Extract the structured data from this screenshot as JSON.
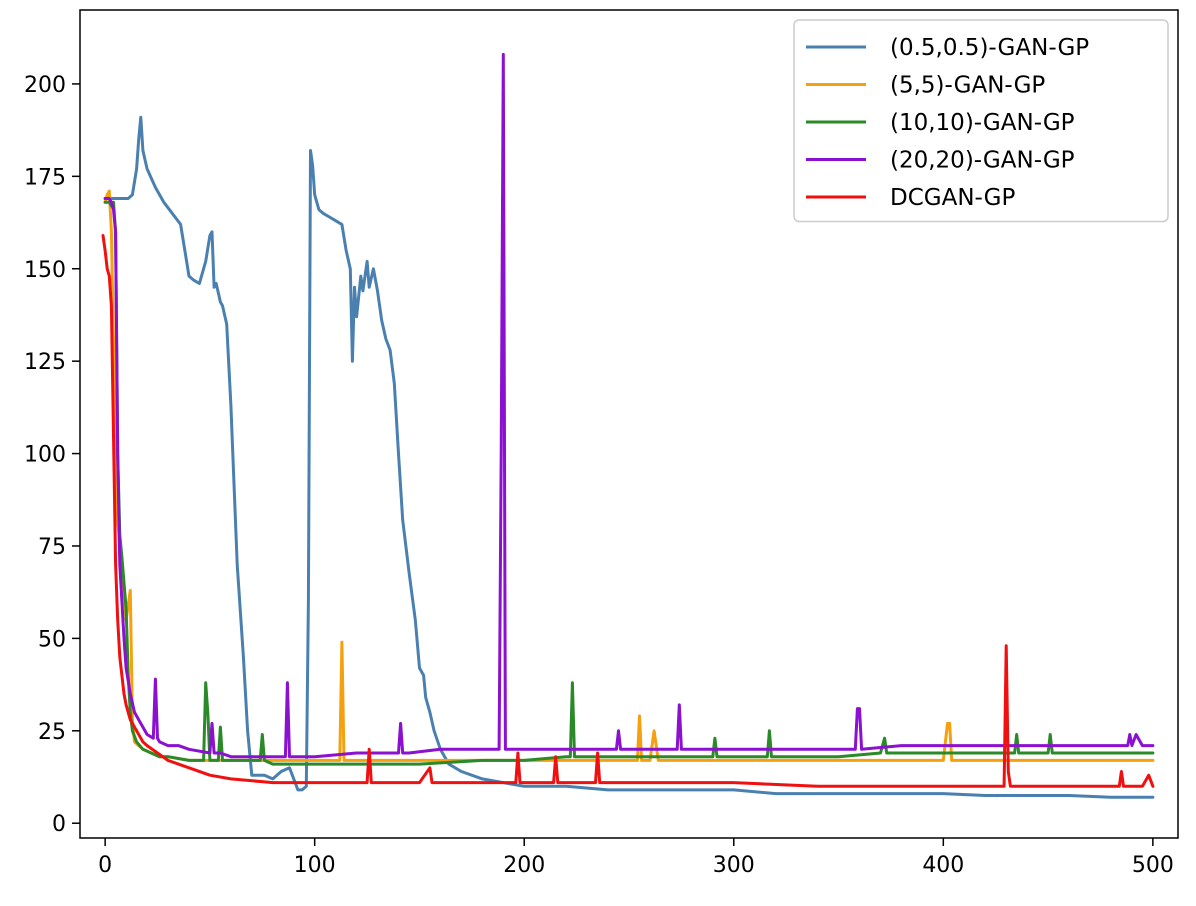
{
  "chart_data": {
    "type": "line",
    "title": "",
    "xlabel": "",
    "ylabel": "",
    "xlim": [
      -12,
      512
    ],
    "ylim": [
      -4,
      220
    ],
    "xticks": [
      0,
      100,
      200,
      300,
      400,
      500
    ],
    "yticks": [
      0,
      25,
      50,
      75,
      100,
      125,
      150,
      175,
      200
    ],
    "grid": false,
    "legend_position": "top-right",
    "series": [
      {
        "name": "(0.5,0.5)-GAN-GP",
        "color": "#4a80b0",
        "x": [
          0,
          2,
          5,
          8,
          11,
          13,
          15,
          16,
          17,
          18,
          20,
          24,
          28,
          32,
          36,
          40,
          42,
          45,
          48,
          50,
          51,
          52,
          53,
          55,
          56,
          58,
          60,
          63,
          66,
          68,
          70,
          73,
          76,
          80,
          84,
          88,
          92,
          94,
          96,
          97,
          98,
          99,
          100,
          102,
          104,
          107,
          110,
          113,
          115,
          117,
          118,
          119,
          120,
          122,
          123,
          125,
          126,
          128,
          130,
          131,
          132,
          134,
          136,
          138,
          140,
          142,
          145,
          148,
          150,
          152,
          153,
          155,
          157,
          160,
          164,
          170,
          180,
          190,
          200,
          220,
          240,
          260,
          280,
          300,
          320,
          340,
          360,
          380,
          400,
          420,
          440,
          460,
          480,
          490,
          500
        ],
        "values": [
          169,
          169,
          169,
          169,
          169,
          170,
          177,
          185,
          191,
          182,
          177,
          172,
          168,
          165,
          162,
          148,
          147,
          146,
          152,
          159,
          160,
          145,
          146,
          141,
          140,
          135,
          113,
          70,
          45,
          25,
          13,
          13,
          13,
          12,
          14,
          15,
          9,
          9,
          10,
          60,
          182,
          178,
          170,
          166,
          165,
          164,
          163,
          162,
          155,
          150,
          125,
          145,
          137,
          148,
          144,
          152,
          145,
          150,
          144,
          140,
          136,
          131,
          128,
          119,
          100,
          82,
          68,
          55,
          42,
          40,
          34,
          30,
          25,
          20,
          16,
          14,
          12,
          11,
          10,
          10,
          9,
          9,
          9,
          9,
          8,
          8,
          8,
          8,
          8,
          7.5,
          7.5,
          7.5,
          7,
          7,
          7
        ]
      },
      {
        "name": "(5,5)-GAN-GP",
        "color": "#f5a00f",
        "x": [
          0,
          1,
          2,
          3,
          4,
          5,
          6,
          7,
          8,
          10,
          12,
          13,
          14,
          16,
          18,
          22,
          26,
          30,
          40,
          50,
          60,
          70,
          80,
          90,
          100,
          110,
          112,
          113,
          114,
          116,
          130,
          150,
          170,
          200,
          230,
          250,
          254,
          255,
          256,
          260,
          262,
          264,
          280,
          300,
          350,
          400,
          402,
          403,
          404,
          420,
          450,
          480,
          500
        ],
        "values": [
          168,
          170,
          171,
          160,
          130,
          95,
          82,
          75,
          70,
          55,
          63,
          28,
          22,
          21,
          20,
          19,
          18,
          18,
          17,
          17,
          17,
          17,
          17,
          17,
          17,
          17,
          17,
          49,
          17,
          17,
          17,
          17,
          17,
          17,
          17,
          17,
          17,
          29,
          17,
          17,
          25,
          17,
          17,
          17,
          17,
          17,
          27,
          27,
          17,
          17,
          17,
          17,
          17
        ]
      },
      {
        "name": "(10,10)-GAN-GP",
        "color": "#2a8a2a",
        "x": [
          0,
          2,
          3,
          4,
          5,
          6,
          7,
          8,
          9,
          10,
          11,
          12,
          13,
          15,
          18,
          22,
          26,
          30,
          40,
          47,
          48,
          49,
          50,
          54,
          55,
          56,
          60,
          70,
          74,
          75,
          76,
          80,
          100,
          120,
          150,
          180,
          200,
          220,
          222,
          223,
          224,
          230,
          250,
          280,
          290,
          291,
          292,
          300,
          316,
          317,
          318,
          330,
          350,
          370,
          372,
          373,
          374,
          400,
          430,
          434,
          435,
          436,
          440,
          450,
          451,
          452,
          470,
          500
        ],
        "values": [
          168,
          168,
          167,
          168,
          160,
          100,
          78,
          72,
          65,
          58,
          40,
          30,
          25,
          22,
          20,
          19,
          18,
          18,
          17,
          17,
          38,
          30,
          17,
          17,
          26,
          17,
          17,
          17,
          17,
          24,
          17,
          16,
          16,
          16,
          16,
          17,
          17,
          18,
          18,
          38,
          18,
          18,
          18,
          18,
          18,
          23,
          18,
          18,
          18,
          25,
          18,
          18,
          18,
          19,
          23,
          19,
          19,
          19,
          19,
          19,
          24,
          19,
          19,
          19,
          24,
          19,
          19,
          19
        ]
      },
      {
        "name": "(20,20)-GAN-GP",
        "color": "#8b10d0",
        "x": [
          0,
          1,
          2,
          3,
          4,
          5,
          6,
          7,
          8,
          9,
          10,
          12,
          14,
          16,
          18,
          20,
          23,
          24,
          25,
          26,
          30,
          35,
          40,
          50,
          51,
          52,
          55,
          60,
          70,
          80,
          86,
          87,
          88,
          90,
          100,
          120,
          140,
          141,
          142,
          145,
          160,
          180,
          188,
          189,
          190,
          191,
          192,
          200,
          240,
          244,
          245,
          246,
          260,
          273,
          274,
          275,
          276,
          300,
          340,
          358,
          359,
          360,
          361,
          380,
          400,
          450,
          480,
          488,
          489,
          490,
          492,
          495,
          500
        ],
        "values": [
          169,
          169,
          169,
          168,
          166,
          160,
          100,
          70,
          60,
          50,
          42,
          35,
          30,
          28,
          26,
          24,
          23,
          39,
          23,
          22,
          21,
          21,
          20,
          19,
          27,
          19,
          19,
          18,
          18,
          18,
          18,
          38,
          18,
          18,
          18,
          19,
          19,
          27,
          19,
          19,
          20,
          20,
          20,
          100,
          208,
          20,
          20,
          20,
          20,
          20,
          25,
          20,
          20,
          20,
          32,
          20,
          20,
          20,
          20,
          20,
          31,
          31,
          20,
          21,
          21,
          21,
          21,
          21,
          24,
          21,
          24,
          21,
          21
        ]
      },
      {
        "name": "DCGAN-GP",
        "color": "#f01010",
        "x": [
          -1,
          0,
          1,
          2,
          3,
          4,
          5,
          6,
          7,
          8,
          9,
          10,
          11,
          12,
          13,
          14,
          16,
          18,
          20,
          25,
          30,
          40,
          50,
          60,
          80,
          100,
          125,
          126,
          127,
          128,
          130,
          150,
          155,
          156,
          157,
          160,
          180,
          196,
          197,
          198,
          200,
          214,
          215,
          216,
          218,
          234,
          235,
          236,
          238,
          260,
          280,
          300,
          340,
          380,
          420,
          429,
          430,
          431,
          432,
          433,
          440,
          460,
          480,
          484,
          485,
          486,
          490,
          495,
          498,
          500
        ],
        "values": [
          159,
          155,
          150,
          148,
          140,
          105,
          70,
          55,
          45,
          40,
          35,
          32,
          30,
          28,
          27,
          26,
          24,
          22,
          21,
          19,
          17,
          15,
          13,
          12,
          11,
          11,
          11,
          20,
          11,
          11,
          11,
          11,
          15,
          11,
          11,
          11,
          11,
          11,
          19,
          11,
          11,
          11,
          18,
          11,
          11,
          11,
          19,
          11,
          11,
          11,
          11,
          11,
          10,
          10,
          10,
          10,
          48,
          14,
          10,
          10,
          10,
          10,
          10,
          10,
          14,
          10,
          10,
          10,
          13,
          10
        ]
      }
    ]
  }
}
